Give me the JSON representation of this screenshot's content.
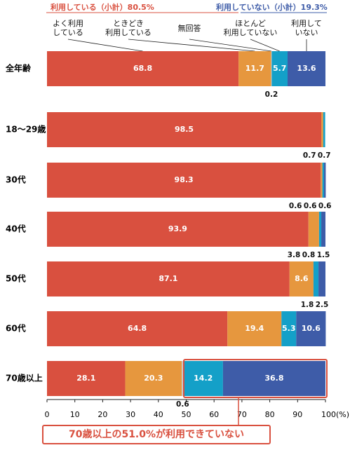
{
  "chart_data": {
    "type": "stacked-bar-horizontal",
    "group_labels": [
      {
        "text": "利用している（小計）80.5%",
        "color": "#d9503f"
      },
      {
        "text": "利用していない（小計）19.3%",
        "color": "#3e5ca8"
      }
    ],
    "categories": [
      "全年齢",
      "18〜29歳",
      "30代",
      "40代",
      "50代",
      "60代",
      "70歳以上"
    ],
    "series": [
      {
        "name": "よく利用\nしている",
        "color": "#d9503f",
        "values": [
          68.8,
          98.5,
          98.3,
          93.9,
          87.1,
          64.8,
          28.1
        ]
      },
      {
        "name": "ときどき\n利用している",
        "color": "#e6973e",
        "values": [
          11.7,
          0.7,
          0.6,
          3.8,
          8.6,
          19.4,
          20.3
        ]
      },
      {
        "name": "無回答",
        "color": "#c9c9c9",
        "values": [
          0.2,
          null,
          null,
          null,
          null,
          null,
          0.6
        ]
      },
      {
        "name": "ほとんど\n利用していない",
        "color": "#14a0c8",
        "values": [
          5.7,
          0.7,
          0.6,
          0.8,
          1.8,
          5.3,
          14.2
        ]
      },
      {
        "name": "利用して\nいない",
        "color": "#3e5ca8",
        "values": [
          13.6,
          null,
          0.6,
          1.5,
          2.5,
          10.6,
          36.8
        ]
      }
    ],
    "xlim": [
      0,
      100
    ],
    "xticks": [
      0,
      10,
      20,
      30,
      40,
      50,
      60,
      70,
      80,
      90,
      {
        "value": 100,
        "label": "100(%)"
      }
    ],
    "annotation": "70歳以上の51.0%が利用できていない"
  }
}
